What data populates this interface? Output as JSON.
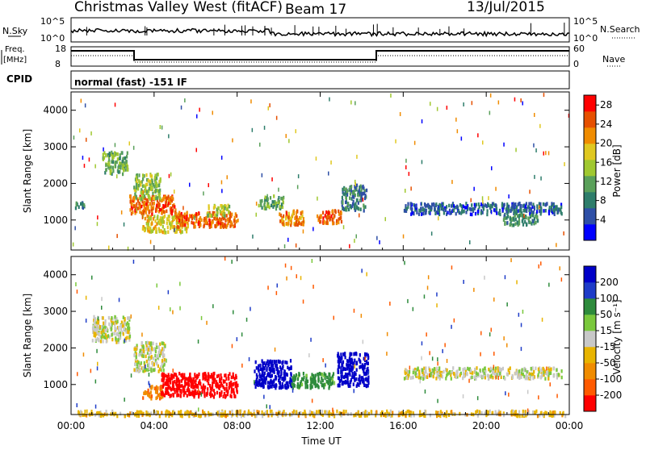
{
  "header": {
    "station": "Christmas Valley West (fitACF)",
    "beam": "Beam 17",
    "date": "13/Jul/2015"
  },
  "nsky_panel": {
    "left_label": "N.Sky",
    "left_ticks": [
      "10^5",
      "10^0"
    ],
    "right_label": "N.Search",
    "right_ticks": [
      "10^5",
      "10^0"
    ]
  },
  "freq_panel": {
    "left_label_1": "Freq.",
    "left_label_2": "[MHz]",
    "left_ticks": [
      "18",
      "8"
    ],
    "right_label": "Nave",
    "right_ticks": [
      "60",
      "0"
    ]
  },
  "cpid_panel": {
    "label": "CPID",
    "mode": "normal (fast) -151 IF"
  },
  "colors": {
    "power": [
      "#0000ff",
      "#2e4fa6",
      "#2e7d6b",
      "#5aa05a",
      "#a0c830",
      "#e0c820",
      "#f08c00",
      "#e65000",
      "#ff0000"
    ],
    "velocity": [
      "#ff0000",
      "#ff5a00",
      "#f08c00",
      "#e8b400",
      "#c8c8c8",
      "#7ac83c",
      "#2e8b3c",
      "#1e3cc8",
      "#0000c8"
    ]
  },
  "chart_data": [
    {
      "type": "heatmap",
      "name": "power-panel",
      "ylabel": "Slant Range [km]",
      "xlabel": "",
      "y_ticks": [
        1000,
        2000,
        3000,
        4000
      ],
      "ylim": [
        180,
        4500
      ],
      "x_ticks_hours": [
        0,
        4,
        8,
        12,
        16,
        20,
        24
      ],
      "colorbar_label": "Power [dB]",
      "colorbar_ticks": [
        "4",
        "8",
        "12",
        "16",
        "20",
        "24",
        "28"
      ],
      "colorbar_range": [
        0,
        30
      ],
      "regions": [
        {
          "t0": 0.1,
          "t1": 0.6,
          "r0": 1350,
          "r1": 1550,
          "v": 8
        },
        {
          "t0": 1.5,
          "t1": 2.7,
          "r0": 2300,
          "r1": 2900,
          "v": 12
        },
        {
          "t0": 2.8,
          "t1": 5.0,
          "r0": 1200,
          "r1": 1700,
          "v": 24
        },
        {
          "t0": 3.0,
          "t1": 4.3,
          "r0": 1600,
          "r1": 2300,
          "v": 14
        },
        {
          "t0": 3.4,
          "t1": 5.6,
          "r0": 700,
          "r1": 1150,
          "v": 18
        },
        {
          "t0": 5.0,
          "t1": 8.0,
          "r0": 850,
          "r1": 1250,
          "v": 24
        },
        {
          "t0": 6.5,
          "t1": 7.6,
          "r0": 1150,
          "r1": 1450,
          "v": 16
        },
        {
          "t0": 9.0,
          "t1": 10.2,
          "r0": 1350,
          "r1": 1700,
          "v": 12
        },
        {
          "t0": 10.0,
          "t1": 11.2,
          "r0": 900,
          "r1": 1300,
          "v": 22
        },
        {
          "t0": 11.8,
          "t1": 13.0,
          "r0": 950,
          "r1": 1300,
          "v": 24
        },
        {
          "t0": 13.0,
          "t1": 14.2,
          "r0": 1300,
          "r1": 2000,
          "v": 8
        },
        {
          "t0": 16.0,
          "t1": 23.6,
          "r0": 1200,
          "r1": 1500,
          "v": 6
        },
        {
          "t0": 20.8,
          "t1": 22.5,
          "r0": 900,
          "r1": 1200,
          "v": 10
        }
      ]
    },
    {
      "type": "heatmap",
      "name": "velocity-panel",
      "ylabel": "Slant Range [km]",
      "xlabel": "Time UT",
      "y_ticks": [
        1000,
        2000,
        3000,
        4000
      ],
      "ylim": [
        180,
        4500
      ],
      "x_ticks": [
        "00:00",
        "04:00",
        "08:00",
        "12:00",
        "16:00",
        "20:00",
        "00:00"
      ],
      "x_ticks_hours": [
        0,
        4,
        8,
        12,
        16,
        20,
        24
      ],
      "colorbar_label": "Velocity [m s⁻¹]",
      "colorbar_ticks": [
        "-200",
        "-100",
        "-50",
        "-15",
        "15",
        "50",
        "100",
        "200"
      ],
      "regions": [
        {
          "t0": 1.0,
          "t1": 2.8,
          "r0": 2200,
          "r1": 2900,
          "v": 0
        },
        {
          "t0": 3.0,
          "t1": 4.5,
          "r0": 1400,
          "r1": 2200,
          "v": 0
        },
        {
          "t0": 3.4,
          "t1": 4.4,
          "r0": 650,
          "r1": 1000,
          "v": -80
        },
        {
          "t0": 4.3,
          "t1": 8.0,
          "r0": 700,
          "r1": 1350,
          "v": -250
        },
        {
          "t0": 8.8,
          "t1": 10.6,
          "r0": 950,
          "r1": 1700,
          "v": 250
        },
        {
          "t0": 10.6,
          "t1": 12.6,
          "r0": 950,
          "r1": 1350,
          "v": 70
        },
        {
          "t0": 12.8,
          "t1": 14.3,
          "r0": 1000,
          "r1": 1900,
          "v": 250
        },
        {
          "t0": 16.0,
          "t1": 23.6,
          "r0": 1200,
          "r1": 1500,
          "v": 0
        },
        {
          "t0": 0.3,
          "t1": 23.8,
          "r0": 180,
          "r1": 320,
          "v": -30
        }
      ]
    }
  ]
}
